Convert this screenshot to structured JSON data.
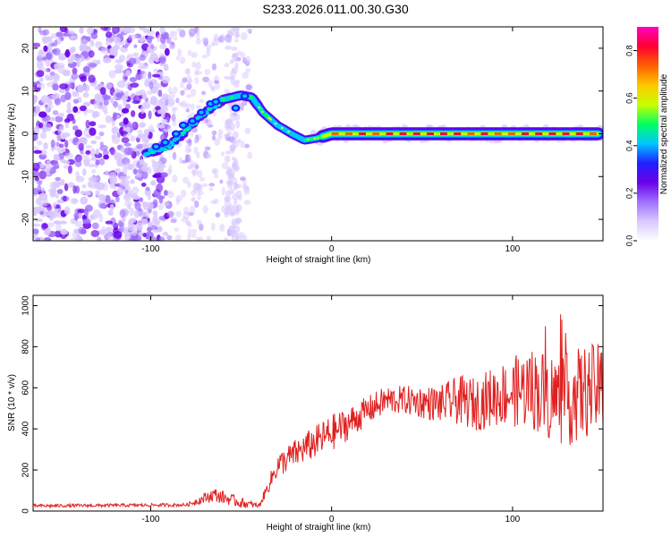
{
  "figure_title": "S233.2026.011.00.30.G30",
  "colors": {
    "snr_line": "#e02020",
    "colormap": [
      "#ffffff",
      "#d9c8ff",
      "#a070ff",
      "#6a00e8",
      "#2020ff",
      "#00c8ff",
      "#00ff60",
      "#c8ff00",
      "#ffc800",
      "#ff6000",
      "#ff0030",
      "#ff00c0"
    ]
  },
  "chart_data": [
    {
      "type": "heatmap",
      "title": "S233.2026.011.00.30.G30",
      "xlabel": "Height of straight line (km)",
      "ylabel": "Frequency (Hz)",
      "xlim": [
        -165,
        150
      ],
      "ylim": [
        -25,
        25
      ],
      "xticks": [
        -100,
        0,
        100
      ],
      "xtick_labels": [
        "-100",
        "0",
        "100"
      ],
      "yticks": [
        -20,
        -10,
        0,
        10,
        20
      ],
      "ytick_labels": [
        "-20",
        "-10",
        "0",
        "10",
        "20"
      ],
      "colorbar": {
        "label": "Normalized spectral amplitude",
        "range": [
          0.0,
          0.9
        ],
        "ticks": [
          0.0,
          0.2,
          0.4,
          0.6,
          0.8
        ],
        "tick_labels": [
          "0.0",
          "0.2",
          "0.4",
          "0.6",
          "0.8"
        ]
      },
      "ridge": {
        "description_points": [
          {
            "x": -103,
            "y": -4.5
          },
          {
            "x": -90,
            "y": -3
          },
          {
            "x": -80,
            "y": 1
          },
          {
            "x": -70,
            "y": 5
          },
          {
            "x": -60,
            "y": 8
          },
          {
            "x": -50,
            "y": 9
          },
          {
            "x": -44,
            "y": 8.5
          },
          {
            "x": -38,
            "y": 5
          },
          {
            "x": -30,
            "y": 2
          },
          {
            "x": -22,
            "y": 0
          },
          {
            "x": -15,
            "y": -1.5
          },
          {
            "x": -8,
            "y": -1
          },
          {
            "x": 0,
            "y": 0
          },
          {
            "x": 150,
            "y": 0
          }
        ]
      }
    },
    {
      "type": "line",
      "xlabel": "Height of straight line (km)",
      "ylabel": "SNR (10 * v/v)",
      "xlim": [
        -165,
        150
      ],
      "ylim": [
        0,
        1050
      ],
      "xticks": [
        -100,
        0,
        100
      ],
      "xtick_labels": [
        "-100",
        "0",
        "100"
      ],
      "yticks": [
        0,
        200,
        400,
        600,
        800,
        1000
      ],
      "ytick_labels": [
        "0",
        "200",
        "400",
        "600",
        "800",
        "1000"
      ],
      "series": [
        {
          "name": "SNR",
          "envelope": {
            "x": [
              -165,
              -80,
              -65,
              -50,
              -40,
              -30,
              -20,
              -10,
              0,
              10,
              20,
              30,
              40,
              50,
              60,
              70,
              80,
              90,
              100,
              110,
              120,
              130,
              140,
              150
            ],
            "mean": [
              25,
              30,
              80,
              40,
              25,
              220,
              280,
              330,
              380,
              430,
              490,
              540,
              540,
              530,
              520,
              540,
              520,
              560,
              580,
              600,
              560,
              540,
              580,
              600
            ],
            "spread": [
              8,
              8,
              35,
              25,
              10,
              60,
              70,
              80,
              90,
              80,
              70,
              70,
              70,
              80,
              90,
              120,
              130,
              150,
              170,
              200,
              220,
              230,
              230,
              220
            ]
          }
        }
      ]
    }
  ]
}
